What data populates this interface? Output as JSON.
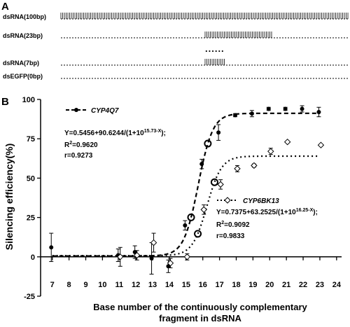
{
  "panel_a": {
    "label": "A",
    "rows": [
      {
        "label": "dsRNA(100bp)",
        "segment": "full"
      },
      {
        "label": "dsRNA(23bp)",
        "segment": "mid23"
      },
      {
        "label": "dsRNA(7bp)",
        "segment": "mid7"
      },
      {
        "label": "dsEGFP(0bp)",
        "segment": "none"
      }
    ],
    "ellipsis": "......"
  },
  "panel_b": {
    "label": "B"
  },
  "chart_data": {
    "type": "scatter",
    "xlabel_line1": "Base number of the continuously complementary",
    "xlabel_line2": "fragment in dsRNA",
    "ylabel": "Silencing efficiency(%)",
    "xlim": [
      6.3,
      24.3
    ],
    "ylim": [
      -25,
      100
    ],
    "xticks": [
      7,
      8,
      9,
      10,
      11,
      12,
      13,
      14,
      15,
      16,
      17,
      18,
      19,
      20,
      21,
      22,
      23,
      24
    ],
    "yticks": [
      -25,
      0,
      25,
      50,
      75,
      100
    ],
    "series": [
      {
        "name": "CYP4Q7",
        "marker": "filled-circle",
        "line": "dashed",
        "fit": {
          "a": 0.5456,
          "b": 90.6244,
          "x0": 15.73
        },
        "points": [
          {
            "x": 7,
            "y": 6,
            "err": 9
          },
          {
            "x": 11,
            "y": 1,
            "err": 4
          },
          {
            "x": 12,
            "y": 3,
            "err": 4
          },
          {
            "x": 13,
            "y": -1,
            "err": 10
          },
          {
            "x": 14,
            "y": -6,
            "err": 4
          },
          {
            "x": 15,
            "y": 20,
            "err": 3
          },
          {
            "x": 16,
            "y": 59,
            "err": 3
          },
          {
            "x": 17,
            "y": 79,
            "err": 5
          },
          {
            "x": 18,
            "y": 90,
            "err": 1
          },
          {
            "x": 19,
            "y": 91,
            "err": 2
          },
          {
            "x": 20,
            "y": 94,
            "err": 1
          },
          {
            "x": 21,
            "y": 94,
            "err": 1
          },
          {
            "x": 22,
            "y": 94,
            "err": 2
          },
          {
            "x": 23,
            "y": 92,
            "err": 3
          }
        ],
        "highlighted_x": [
          15.3,
          16.3
        ]
      },
      {
        "name": "CYP6BK13",
        "marker": "open-diamond",
        "line": "dotted",
        "fit": {
          "a": 0.7375,
          "b": 63.2525,
          "x0": 16.25
        },
        "points": [
          {
            "x": 11,
            "y": 0,
            "err": 6
          },
          {
            "x": 12,
            "y": 1,
            "err": 3
          },
          {
            "x": 13,
            "y": 9,
            "err": 6
          },
          {
            "x": 14,
            "y": -4,
            "err": 3
          },
          {
            "x": 15,
            "y": 0,
            "err": 2
          },
          {
            "x": 16,
            "y": 30,
            "err": 3
          },
          {
            "x": 17,
            "y": 46,
            "err": 3
          },
          {
            "x": 18,
            "y": 56,
            "err": 2
          },
          {
            "x": 19,
            "y": 58,
            "err": 1
          },
          {
            "x": 20,
            "y": 67,
            "err": 2
          },
          {
            "x": 21,
            "y": 73,
            "err": 0
          },
          {
            "x": 23,
            "y": 71,
            "err": 0
          }
        ],
        "highlighted_x": [
          15.7,
          16.7
        ]
      }
    ],
    "annotations": [
      {
        "series": "CYP4Q7",
        "eq_main": "Y=0.5456+90.6244/(1+10",
        "eq_sup": "15.73-X",
        "eq_end": ");",
        "r2_label": "R",
        "r2_value": "=0.9620",
        "r": "r=0.9273"
      },
      {
        "series": "CYP6BK13",
        "eq_main": "Y=0.7375+63.2525/(1+10",
        "eq_sup": "16.25-X",
        "eq_end": ");",
        "r2_label": "R",
        "r2_value": "=0.9092",
        "r": "r=0.9833"
      }
    ]
  }
}
